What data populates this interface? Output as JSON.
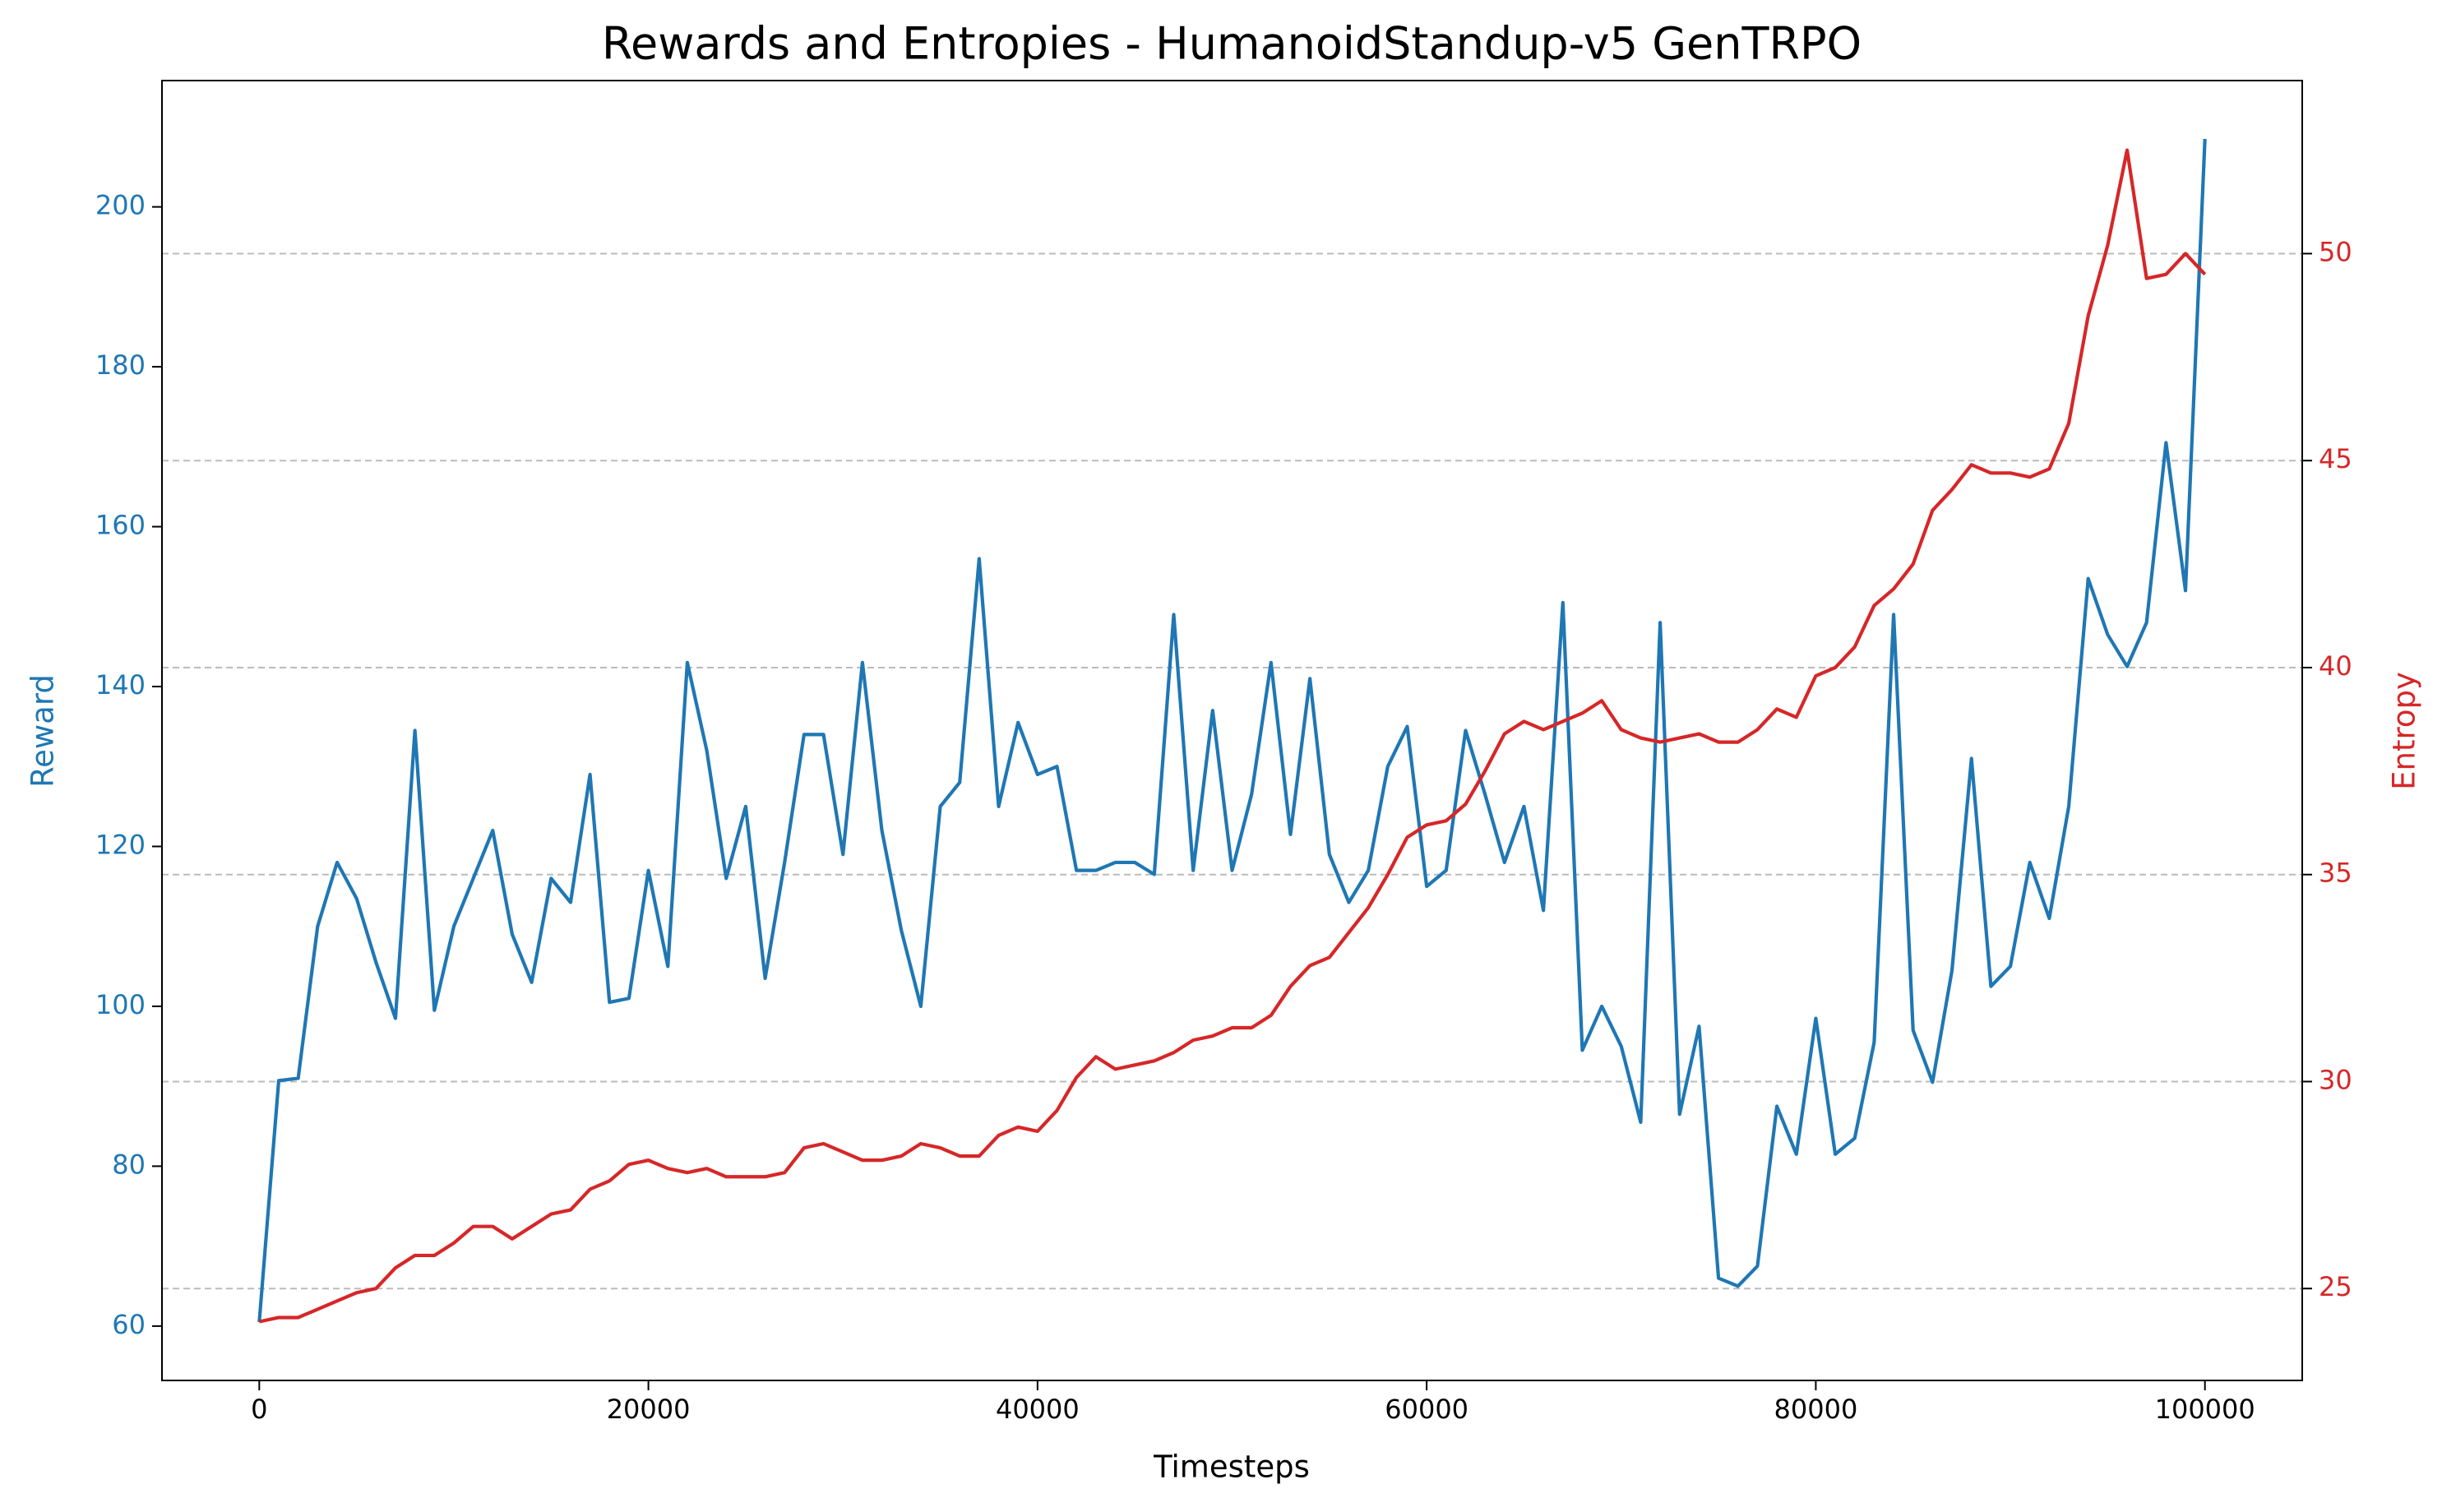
{
  "chart_data": {
    "type": "line",
    "title": "Rewards and Entropies - HumanoidStandup-v5 GenTRPO",
    "x_label": "Timesteps",
    "y_label": "Reward",
    "y2_label": "Entropy",
    "x": [
      0,
      1000,
      2000,
      3000,
      4000,
      5000,
      6000,
      7000,
      8000,
      9000,
      10000,
      11000,
      12000,
      13000,
      14000,
      15000,
      16000,
      17000,
      18000,
      19000,
      20000,
      21000,
      22000,
      23000,
      24000,
      25000,
      26000,
      27000,
      28000,
      29000,
      30000,
      31000,
      32000,
      33000,
      34000,
      35000,
      36000,
      37000,
      38000,
      39000,
      40000,
      41000,
      42000,
      43000,
      44000,
      45000,
      46000,
      47000,
      48000,
      49000,
      50000,
      51000,
      52000,
      53000,
      54000,
      55000,
      56000,
      57000,
      58000,
      59000,
      60000,
      61000,
      62000,
      63000,
      64000,
      65000,
      66000,
      67000,
      68000,
      69000,
      70000,
      71000,
      72000,
      73000,
      74000,
      75000,
      76000,
      77000,
      78000,
      79000,
      80000,
      81000,
      82000,
      83000,
      84000,
      85000,
      86000,
      87000,
      88000,
      89000,
      90000,
      91000,
      92000,
      93000,
      94000,
      95000,
      96000,
      97000,
      98000,
      99000,
      100000
    ],
    "series": [
      {
        "name": "Reward",
        "color": "#1f77b4",
        "axis": "y",
        "values": [
          60.5,
          90.7,
          91,
          110,
          118,
          113.5,
          105.5,
          98.5,
          134.5,
          99.5,
          110,
          116,
          122,
          109,
          103,
          116,
          113,
          129,
          100.5,
          101,
          117,
          105,
          143,
          132,
          116,
          125,
          103.5,
          118,
          134,
          134,
          119,
          143,
          122,
          109.5,
          100,
          125,
          128,
          156,
          125,
          135.5,
          129,
          130,
          117,
          117,
          118,
          118,
          116.5,
          149,
          117,
          137,
          117,
          126.5,
          143,
          121.5,
          141,
          119,
          113,
          117,
          130,
          135,
          115,
          117,
          134.5,
          126.5,
          118,
          125,
          112,
          150.5,
          94.5,
          100,
          95,
          85.5,
          148,
          86.5,
          97.5,
          66,
          65,
          67.5,
          87.5,
          81.5,
          98.5,
          81.5,
          83.5,
          95.5,
          149,
          97,
          90.5,
          104.5,
          131,
          102.5,
          105,
          118,
          111,
          125,
          153.5,
          146.5,
          142.5,
          148,
          170.5,
          152,
          208.5
        ]
      },
      {
        "name": "Entropy",
        "color": "#d62728",
        "axis": "y2",
        "values": [
          24.2,
          24.3,
          24.3,
          24.5,
          24.7,
          24.9,
          25.0,
          25.5,
          25.8,
          25.8,
          26.1,
          26.5,
          26.5,
          26.2,
          26.5,
          26.8,
          26.9,
          27.4,
          27.6,
          28.0,
          28.1,
          27.9,
          27.8,
          27.9,
          27.7,
          27.7,
          27.7,
          27.8,
          28.4,
          28.5,
          28.3,
          28.1,
          28.1,
          28.2,
          28.5,
          28.4,
          28.2,
          28.2,
          28.7,
          28.9,
          28.8,
          29.3,
          30.1,
          30.6,
          30.3,
          30.4,
          30.5,
          30.7,
          31.0,
          31.1,
          31.3,
          31.3,
          31.6,
          32.3,
          32.8,
          33.0,
          33.6,
          34.2,
          35.0,
          35.9,
          36.2,
          36.3,
          36.7,
          37.5,
          38.4,
          38.7,
          38.5,
          38.7,
          38.9,
          39.2,
          38.5,
          38.3,
          38.2,
          38.3,
          38.4,
          38.2,
          38.2,
          38.5,
          39.0,
          38.8,
          39.8,
          40.0,
          40.5,
          41.5,
          41.9,
          42.5,
          43.8,
          44.3,
          44.9,
          44.7,
          44.7,
          44.6,
          44.8,
          45.9,
          48.5,
          50.2,
          52.5,
          49.4,
          49.5,
          50.0,
          49.5
        ]
      }
    ],
    "xlim": [
      -5000,
      105000
    ],
    "xticks": [
      0,
      20000,
      40000,
      60000,
      80000,
      100000
    ],
    "ylim": [
      53.2,
      215.8
    ],
    "yticks": [
      60,
      80,
      100,
      120,
      140,
      160,
      180,
      200
    ],
    "y2lim": [
      22.78,
      54.18
    ],
    "y2ticks": [
      25,
      30,
      35,
      40,
      45,
      50
    ],
    "grid": "y2"
  }
}
